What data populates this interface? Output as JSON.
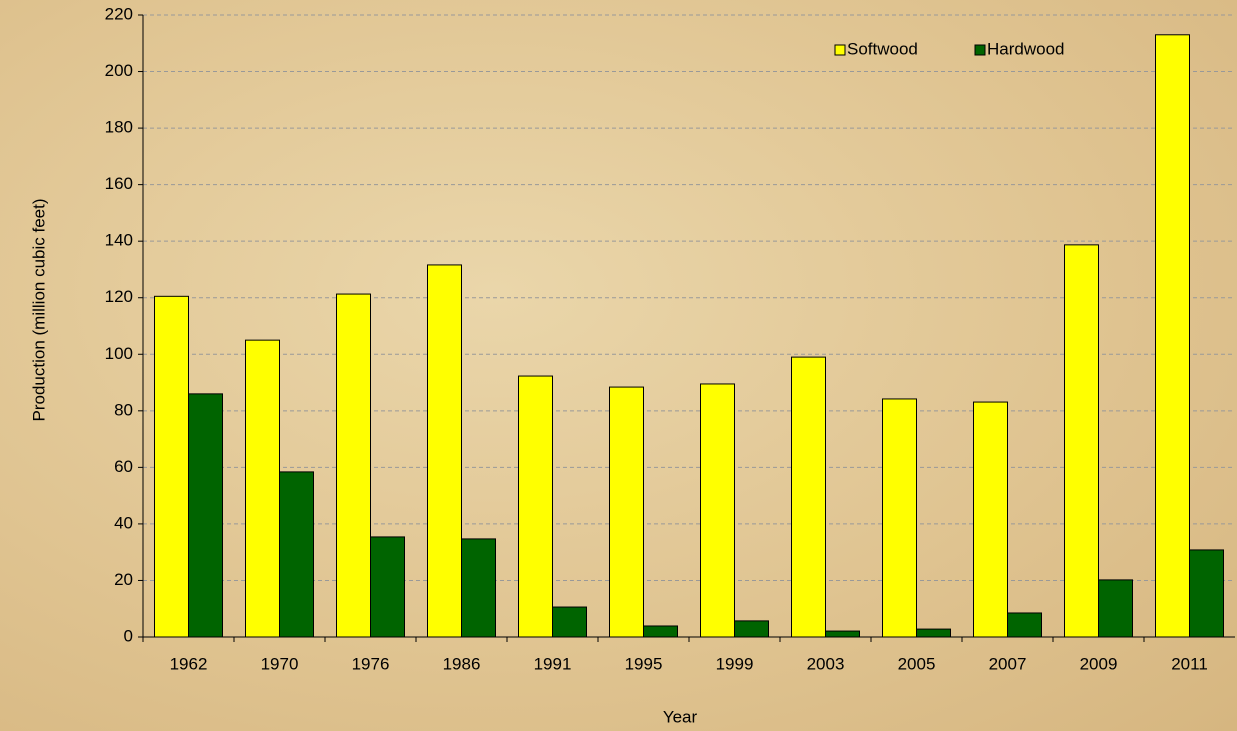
{
  "chart_data": {
    "type": "bar",
    "x_label": "Year",
    "y_label": "Production (million cubic feet)",
    "categories": [
      "1962",
      "1970",
      "1976",
      "1986",
      "1991",
      "1995",
      "1999",
      "2003",
      "2005",
      "2007",
      "2009",
      "2011"
    ],
    "series": [
      {
        "name": "Softwood",
        "color": "#ffff00",
        "values": [
          120.5,
          105,
          121.3,
          131.6,
          92.3,
          88.4,
          89.5,
          99,
          84.2,
          83.1,
          138.7,
          213
        ]
      },
      {
        "name": "Hardwood",
        "color": "#006400",
        "values": [
          86,
          58.4,
          35.4,
          34.7,
          10.6,
          3.9,
          5.7,
          2.1,
          2.8,
          8.5,
          20.2,
          30.8
        ]
      }
    ],
    "ylim": [
      0,
      220
    ],
    "yticks": [
      0,
      20,
      40,
      60,
      80,
      100,
      120,
      140,
      160,
      180,
      200,
      220
    ],
    "grid": true,
    "legend": "top-right"
  }
}
